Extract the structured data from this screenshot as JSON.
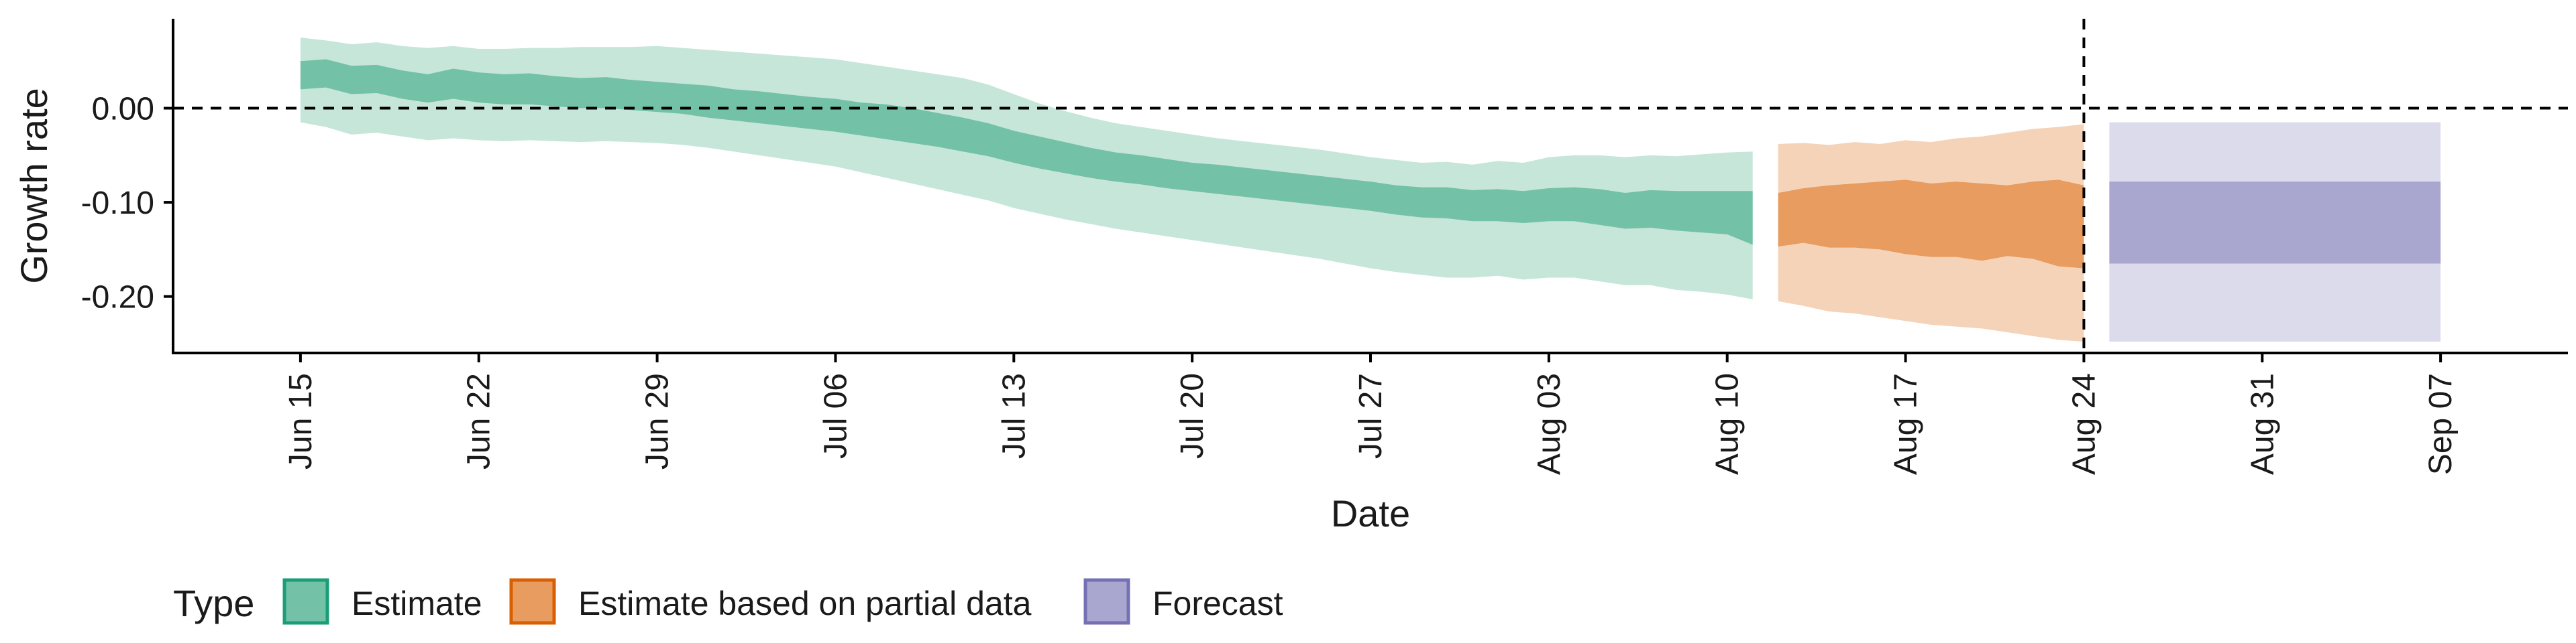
{
  "chart_data": {
    "type": "area",
    "xlabel": "Date",
    "ylabel": "Growth rate",
    "x_axis": {
      "type": "date",
      "range": [
        "2020-06-10",
        "2020-09-12"
      ],
      "ticks": [
        {
          "date": "2020-06-15",
          "label": "Jun 15"
        },
        {
          "date": "2020-06-22",
          "label": "Jun 22"
        },
        {
          "date": "2020-06-29",
          "label": "Jun 29"
        },
        {
          "date": "2020-07-06",
          "label": "Jul 06"
        },
        {
          "date": "2020-07-13",
          "label": "Jul 13"
        },
        {
          "date": "2020-07-20",
          "label": "Jul 20"
        },
        {
          "date": "2020-07-27",
          "label": "Jul 27"
        },
        {
          "date": "2020-08-03",
          "label": "Aug 03"
        },
        {
          "date": "2020-08-10",
          "label": "Aug 10"
        },
        {
          "date": "2020-08-17",
          "label": "Aug 17"
        },
        {
          "date": "2020-08-24",
          "label": "Aug 24"
        },
        {
          "date": "2020-08-31",
          "label": "Aug 31"
        },
        {
          "date": "2020-09-07",
          "label": "Sep 07"
        }
      ]
    },
    "y_axis": {
      "range": [
        -0.26,
        0.095
      ],
      "ticks": [
        {
          "value": 0.0,
          "label": "0.00"
        },
        {
          "value": -0.1,
          "label": "-0.10"
        },
        {
          "value": -0.2,
          "label": "-0.20"
        }
      ]
    },
    "reference_lines": {
      "horizontal_y": 0.0,
      "vertical_date": "2020-08-24",
      "style": "dashed"
    },
    "legend": {
      "title": "Type",
      "position": "bottom-left",
      "entries": [
        {
          "label": "Estimate",
          "fill": "#73c1a6",
          "border": "#1b9e77"
        },
        {
          "label": "Estimate based on partial data",
          "fill": "#e89c5f",
          "border": "#d95f02"
        },
        {
          "label": "Forecast",
          "fill": "#a9a6cf",
          "border": "#7570b3"
        }
      ]
    },
    "series": [
      {
        "name": "Estimate",
        "fill_inner": "#73c1a6",
        "fill_outer": "#c6e6da",
        "dates": [
          "2020-06-15",
          "2020-06-16",
          "2020-06-17",
          "2020-06-18",
          "2020-06-19",
          "2020-06-20",
          "2020-06-21",
          "2020-06-22",
          "2020-06-23",
          "2020-06-24",
          "2020-06-25",
          "2020-06-26",
          "2020-06-27",
          "2020-06-28",
          "2020-06-29",
          "2020-06-30",
          "2020-07-01",
          "2020-07-02",
          "2020-07-03",
          "2020-07-04",
          "2020-07-05",
          "2020-07-06",
          "2020-07-07",
          "2020-07-08",
          "2020-07-09",
          "2020-07-10",
          "2020-07-11",
          "2020-07-12",
          "2020-07-13",
          "2020-07-14",
          "2020-07-15",
          "2020-07-16",
          "2020-07-17",
          "2020-07-18",
          "2020-07-19",
          "2020-07-20",
          "2020-07-21",
          "2020-07-22",
          "2020-07-23",
          "2020-07-24",
          "2020-07-25",
          "2020-07-26",
          "2020-07-27",
          "2020-07-28",
          "2020-07-29",
          "2020-07-30",
          "2020-07-31",
          "2020-08-01",
          "2020-08-02",
          "2020-08-03",
          "2020-08-04",
          "2020-08-05",
          "2020-08-06",
          "2020-08-07",
          "2020-08-08",
          "2020-08-09",
          "2020-08-10",
          "2020-08-11"
        ],
        "upper90": [
          0.075,
          0.072,
          0.068,
          0.07,
          0.066,
          0.064,
          0.066,
          0.063,
          0.063,
          0.064,
          0.064,
          0.065,
          0.065,
          0.065,
          0.066,
          0.064,
          0.062,
          0.06,
          0.058,
          0.056,
          0.054,
          0.052,
          0.048,
          0.044,
          0.04,
          0.036,
          0.032,
          0.025,
          0.015,
          0.005,
          -0.003,
          -0.01,
          -0.016,
          -0.02,
          -0.024,
          -0.028,
          -0.032,
          -0.035,
          -0.038,
          -0.041,
          -0.044,
          -0.048,
          -0.052,
          -0.055,
          -0.058,
          -0.057,
          -0.06,
          -0.056,
          -0.058,
          -0.052,
          -0.05,
          -0.05,
          -0.052,
          -0.05,
          -0.051,
          -0.049,
          -0.047,
          -0.046
        ],
        "upper50": [
          0.05,
          0.052,
          0.045,
          0.046,
          0.04,
          0.036,
          0.042,
          0.038,
          0.036,
          0.037,
          0.034,
          0.032,
          0.033,
          0.03,
          0.028,
          0.026,
          0.024,
          0.02,
          0.018,
          0.015,
          0.012,
          0.01,
          0.006,
          0.004,
          0.0,
          -0.005,
          -0.01,
          -0.016,
          -0.024,
          -0.03,
          -0.036,
          -0.042,
          -0.047,
          -0.05,
          -0.054,
          -0.058,
          -0.06,
          -0.063,
          -0.066,
          -0.069,
          -0.072,
          -0.075,
          -0.078,
          -0.082,
          -0.084,
          -0.084,
          -0.087,
          -0.086,
          -0.088,
          -0.085,
          -0.084,
          -0.086,
          -0.09,
          -0.087,
          -0.088,
          -0.088,
          -0.088,
          -0.088
        ],
        "lower50": [
          0.02,
          0.022,
          0.015,
          0.016,
          0.01,
          0.006,
          0.01,
          0.006,
          0.004,
          0.004,
          0.002,
          0.0,
          0.0,
          -0.002,
          -0.004,
          -0.006,
          -0.01,
          -0.013,
          -0.016,
          -0.019,
          -0.022,
          -0.025,
          -0.029,
          -0.033,
          -0.037,
          -0.041,
          -0.046,
          -0.051,
          -0.058,
          -0.064,
          -0.069,
          -0.074,
          -0.078,
          -0.081,
          -0.085,
          -0.088,
          -0.091,
          -0.094,
          -0.097,
          -0.1,
          -0.103,
          -0.106,
          -0.109,
          -0.113,
          -0.116,
          -0.117,
          -0.12,
          -0.12,
          -0.122,
          -0.12,
          -0.12,
          -0.124,
          -0.128,
          -0.127,
          -0.13,
          -0.132,
          -0.134,
          -0.145
        ],
        "lower90": [
          -0.015,
          -0.02,
          -0.028,
          -0.026,
          -0.03,
          -0.034,
          -0.032,
          -0.034,
          -0.035,
          -0.034,
          -0.035,
          -0.036,
          -0.035,
          -0.036,
          -0.037,
          -0.039,
          -0.042,
          -0.046,
          -0.05,
          -0.054,
          -0.058,
          -0.062,
          -0.068,
          -0.074,
          -0.08,
          -0.086,
          -0.092,
          -0.098,
          -0.106,
          -0.112,
          -0.118,
          -0.123,
          -0.128,
          -0.132,
          -0.136,
          -0.14,
          -0.144,
          -0.148,
          -0.152,
          -0.156,
          -0.16,
          -0.165,
          -0.17,
          -0.174,
          -0.177,
          -0.18,
          -0.18,
          -0.178,
          -0.182,
          -0.18,
          -0.18,
          -0.184,
          -0.188,
          -0.188,
          -0.193,
          -0.195,
          -0.198,
          -0.203
        ]
      },
      {
        "name": "Estimate based on partial data",
        "fill_inner": "#e89c5f",
        "fill_outer": "#f5d3b8",
        "dates": [
          "2020-08-12",
          "2020-08-13",
          "2020-08-14",
          "2020-08-15",
          "2020-08-16",
          "2020-08-17",
          "2020-08-18",
          "2020-08-19",
          "2020-08-20",
          "2020-08-21",
          "2020-08-22",
          "2020-08-23",
          "2020-08-24"
        ],
        "upper90": [
          -0.038,
          -0.037,
          -0.039,
          -0.036,
          -0.038,
          -0.034,
          -0.036,
          -0.032,
          -0.03,
          -0.026,
          -0.022,
          -0.02,
          -0.017
        ],
        "upper50": [
          -0.09,
          -0.085,
          -0.082,
          -0.08,
          -0.078,
          -0.076,
          -0.08,
          -0.078,
          -0.08,
          -0.082,
          -0.078,
          -0.076,
          -0.082
        ],
        "lower50": [
          -0.147,
          -0.143,
          -0.148,
          -0.148,
          -0.15,
          -0.155,
          -0.158,
          -0.158,
          -0.162,
          -0.157,
          -0.16,
          -0.168,
          -0.17
        ],
        "lower90": [
          -0.205,
          -0.21,
          -0.216,
          -0.218,
          -0.222,
          -0.226,
          -0.23,
          -0.232,
          -0.234,
          -0.238,
          -0.242,
          -0.246,
          -0.248
        ]
      },
      {
        "name": "Forecast",
        "fill_inner": "#a9a6cf",
        "fill_outer": "#dcdbec",
        "dates": [
          "2020-08-25",
          "2020-09-07"
        ],
        "upper90": [
          -0.015,
          -0.015
        ],
        "upper50": [
          -0.078,
          -0.078
        ],
        "lower50": [
          -0.165,
          -0.165
        ],
        "lower90": [
          -0.248,
          -0.248
        ]
      }
    ]
  }
}
